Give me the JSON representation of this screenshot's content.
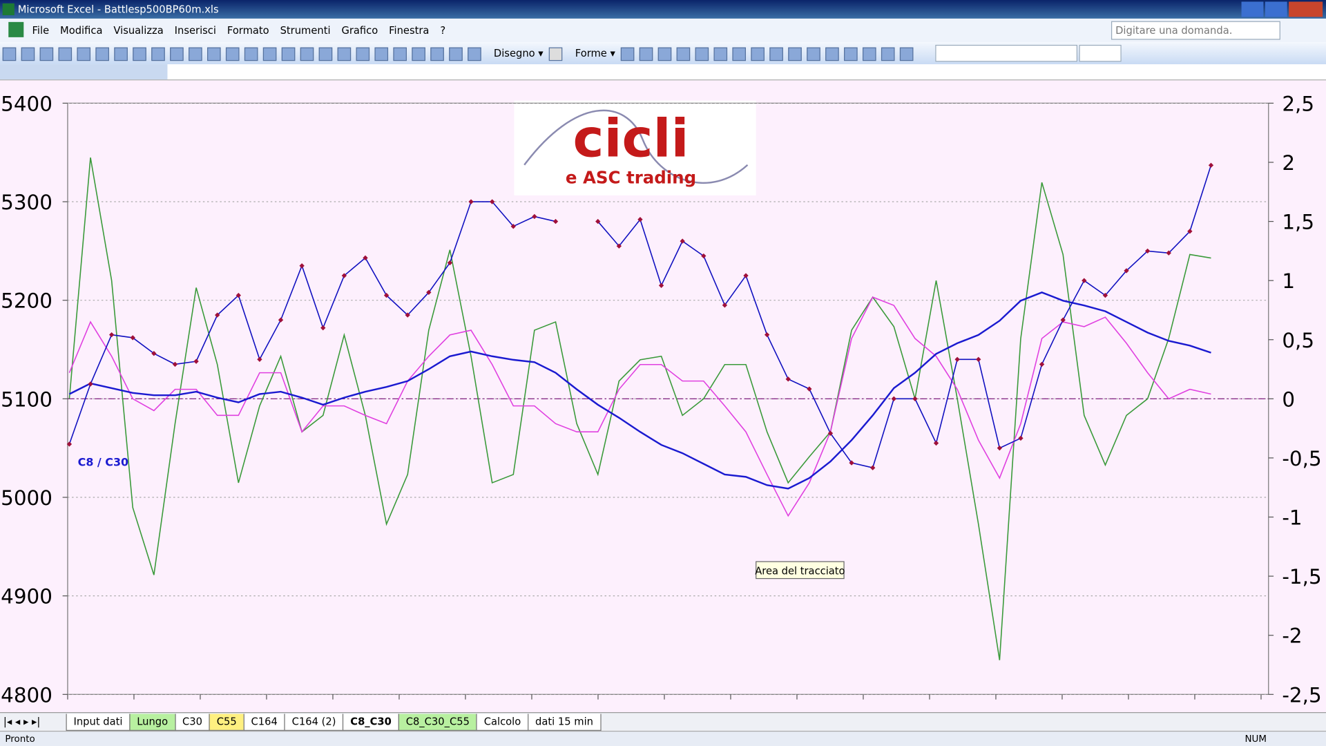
{
  "window": {
    "title": "Microsoft Excel - Battlesp500BP60m.xls",
    "help_box": "Digitare una domanda."
  },
  "menu": [
    "File",
    "Modifica",
    "Visualizza",
    "Inserisci",
    "Formato",
    "Strumenti",
    "Grafico",
    "Finestra",
    "?"
  ],
  "toolbar": {
    "drawing": "Disegno",
    "shapes": "Forme"
  },
  "chart_data": {
    "type": "line",
    "ylim": [
      4800,
      5400
    ],
    "yticks": [
      4800,
      4900,
      5000,
      5100,
      5200,
      5300,
      5400
    ],
    "y2lim": [
      -2.5,
      2.5
    ],
    "y2ticks": [
      {
        "value": -2.5,
        "label": "-2,5"
      },
      {
        "value": -2,
        "label": "-2"
      },
      {
        "value": -1.5,
        "label": "-1,5"
      },
      {
        "value": -1,
        "label": "-1"
      },
      {
        "value": -0.5,
        "label": "-0,5"
      },
      0,
      {
        "value": 0.5,
        "label": "0,5"
      },
      1,
      {
        "value": 1.5,
        "label": "1,5"
      },
      2,
      {
        "value": 2.5,
        "label": "2,5"
      }
    ],
    "grid": true,
    "annotations": [
      "C8 / C30",
      "Area del tracciato"
    ],
    "logo": {
      "title": "cicli",
      "subtitle": "e ASC trading"
    },
    "series": [
      {
        "axis": "y",
        "color": "#1010c0",
        "marker_color": "#a0103a",
        "values": [
          5054,
          5115,
          5165,
          5162,
          5146,
          5135,
          5138,
          5185,
          5205,
          5140,
          5180,
          5235,
          5172,
          5225,
          5243,
          5205,
          5185,
          5208,
          5238,
          5300,
          5300,
          5275,
          5285,
          5280,
          null,
          5280,
          5255,
          5282,
          5215,
          5260,
          5245,
          5195,
          5225,
          5165,
          5120,
          5110,
          5065,
          5035,
          5030,
          5100,
          5100,
          5055,
          5140,
          5140,
          5050,
          5060,
          5135,
          5180,
          5220,
          5205,
          5230,
          5250,
          5248,
          5270,
          5337
        ]
      },
      {
        "axis": "y2",
        "color": "#3a9a3a",
        "values": [
          0,
          2.04,
          1.0,
          -0.92,
          -1.49,
          -0.21,
          0.94,
          0.29,
          -0.71,
          -0.06,
          0.36,
          -0.28,
          -0.14,
          0.54,
          -0.14,
          -1.06,
          -0.64,
          0.58,
          1.26,
          0.36,
          -0.71,
          -0.64,
          0.58,
          0.65,
          -0.21,
          -0.64,
          0.15,
          0.33,
          0.36,
          -0.14,
          0,
          0.29,
          0.29,
          -0.28,
          -0.71,
          -0.49,
          -0.28,
          0.58,
          0.86,
          0.61,
          0,
          1.0,
          0,
          -1.06,
          -2.21,
          0.51,
          1.83,
          1.22,
          -0.14,
          -0.56,
          -0.14,
          0,
          0.51,
          1.22,
          1.19
        ]
      },
      {
        "axis": "y2",
        "color": "#e040e0",
        "values": [
          0.22,
          0.65,
          0.36,
          0,
          -0.1,
          0.08,
          0.08,
          -0.14,
          -0.14,
          0.22,
          0.22,
          -0.28,
          -0.06,
          -0.06,
          -0.14,
          -0.21,
          0.15,
          0.36,
          0.54,
          0.58,
          0.29,
          -0.06,
          -0.06,
          -0.21,
          -0.28,
          -0.28,
          0.08,
          0.29,
          0.29,
          0.15,
          0.15,
          -0.06,
          -0.28,
          -0.64,
          -0.99,
          -0.71,
          -0.28,
          0.51,
          0.86,
          0.79,
          0.51,
          0.36,
          0.08,
          -0.35,
          -0.67,
          -0.21,
          0.51,
          0.65,
          0.61,
          0.69,
          0.47,
          0.22,
          0,
          0.08,
          0.04
        ]
      },
      {
        "axis": "y2",
        "color": "#1a1ad0",
        "values": [
          0.04,
          0.13,
          0.09,
          0.05,
          0.03,
          0.03,
          0.06,
          0.01,
          -0.03,
          0.04,
          0.06,
          0.01,
          -0.05,
          0.01,
          0.06,
          0.1,
          0.15,
          0.25,
          0.36,
          0.4,
          0.36,
          0.33,
          0.31,
          0.22,
          0.08,
          -0.05,
          -0.16,
          -0.28,
          -0.39,
          -0.46,
          -0.55,
          -0.64,
          -0.66,
          -0.73,
          -0.76,
          -0.67,
          -0.53,
          -0.35,
          -0.14,
          0.09,
          0.22,
          0.38,
          0.47,
          0.54,
          0.66,
          0.83,
          0.9,
          0.83,
          0.79,
          0.74,
          0.65,
          0.56,
          0.49,
          0.45,
          0.39
        ]
      }
    ]
  },
  "sheet_tabs": [
    {
      "label": "Input dati",
      "color": "#ffffff"
    },
    {
      "label": "Lungo",
      "color": "#b8f0a0"
    },
    {
      "label": "C30",
      "color": "#ffffff"
    },
    {
      "label": "C55",
      "color": "#fff080"
    },
    {
      "label": "C164",
      "color": "#ffffff"
    },
    {
      "label": "C164 (2)",
      "color": "#ffffff"
    },
    {
      "label": "C8_C30",
      "color": "#ffffff"
    },
    {
      "label": "C8_C30_C55",
      "color": "#b8f0a0"
    },
    {
      "label": "Calcolo",
      "color": "#ffffff"
    },
    {
      "label": "dati 15 min",
      "color": "#ffffff"
    }
  ],
  "status": {
    "left": "Pronto",
    "num": "NUM"
  }
}
